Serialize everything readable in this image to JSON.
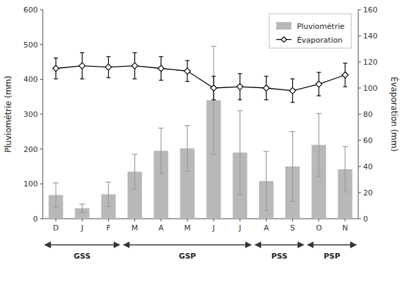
{
  "chart_data": {
    "type": "bar",
    "categories": [
      "D",
      "J",
      "F",
      "M",
      "A",
      "M",
      "J",
      "J",
      "A",
      "S",
      "O",
      "N"
    ],
    "series": [
      {
        "name": "Pluviométrie",
        "type": "bar",
        "color": "#b8b8b8",
        "values": [
          68,
          30,
          70,
          135,
          195,
          202,
          340,
          190,
          108,
          150,
          212,
          142
        ],
        "errors": [
          35,
          12,
          35,
          50,
          65,
          65,
          155,
          120,
          85,
          100,
          90,
          65
        ]
      },
      {
        "name": "Évaporation",
        "type": "line",
        "axis": "y2",
        "color": "#000000",
        "marker": "diamond",
        "values": [
          115,
          117,
          116,
          117,
          115,
          113,
          100,
          101,
          100,
          98,
          103,
          110
        ],
        "errors": [
          8,
          10,
          8,
          10,
          9,
          8,
          9,
          10,
          9,
          9,
          9,
          9
        ]
      }
    ],
    "ylabel": "Pluviométrie (mm)",
    "y2label": "Évaporation (mm)",
    "ylim": [
      0,
      600
    ],
    "yticks": [
      0,
      100,
      200,
      300,
      400,
      500,
      600
    ],
    "y2lim": [
      0,
      160
    ],
    "y2ticks": [
      0,
      20,
      40,
      60,
      80,
      100,
      120,
      140,
      160
    ],
    "annotations": [
      {
        "text": "GSS",
        "start": 0,
        "end": 2
      },
      {
        "text": "GSP",
        "start": 3,
        "end": 7
      },
      {
        "text": "PSS",
        "start": 8,
        "end": 9
      },
      {
        "text": "PSP",
        "start": 10,
        "end": 11
      }
    ],
    "legend": "upper right",
    "grid": false
  }
}
